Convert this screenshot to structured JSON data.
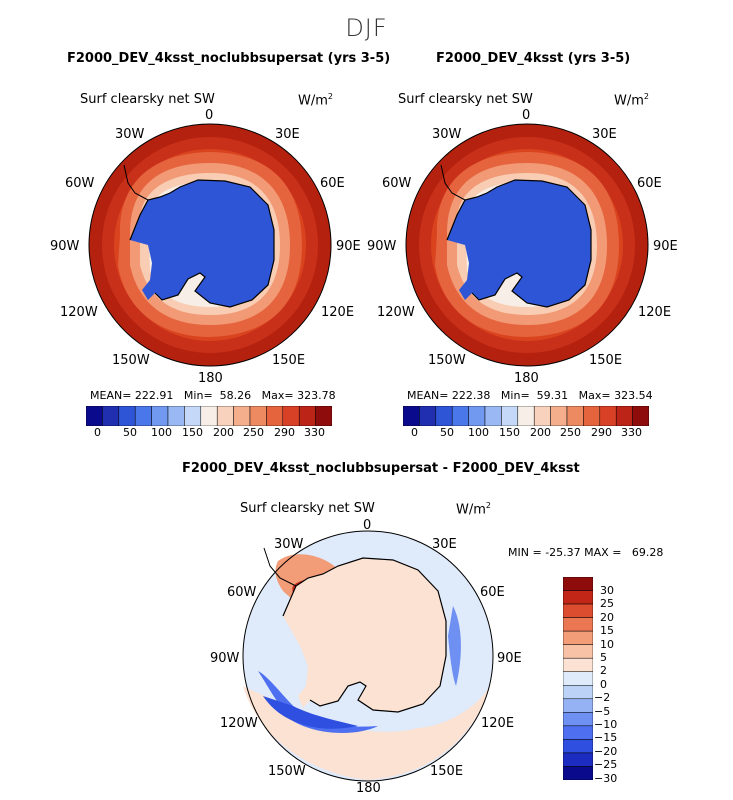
{
  "suptitle": "DJF",
  "panels": [
    {
      "title": "F2000_DEV_4ksst_noclubbsupersat (yrs 3-5)",
      "variable": "Surf clearsky net SW",
      "units": "W/m",
      "units_exp": "2",
      "stats": {
        "mean_label": "MEAN=",
        "mean": "222.91",
        "min_label": "Min=",
        "min": "58.26",
        "max_label": "Max=",
        "max": "323.78"
      },
      "colorbar_ticks": [
        "0",
        "50",
        "100",
        "150",
        "200",
        "250",
        "290",
        "330"
      ]
    },
    {
      "title": "F2000_DEV_4ksst (yrs 3-5)",
      "variable": "Surf clearsky net SW",
      "units": "W/m",
      "units_exp": "2",
      "stats": {
        "mean_label": "MEAN=",
        "mean": "222.38",
        "min_label": "Min=",
        "min": "59.31",
        "max_label": "Max=",
        "max": "323.54"
      },
      "colorbar_ticks": [
        "0",
        "50",
        "100",
        "150",
        "200",
        "250",
        "290",
        "330"
      ]
    }
  ],
  "diff": {
    "title": "F2000_DEV_4ksst_noclubbsupersat - F2000_DEV_4ksst",
    "variable": "Surf clearsky net SW",
    "units": "W/m",
    "units_exp": "2",
    "min_label": "MIN =",
    "min": "-25.37",
    "max_label": "MAX =",
    "max": "69.28",
    "colorbar_ticks": [
      "30",
      "25",
      "20",
      "15",
      "10",
      "5",
      "2",
      "0",
      "−2",
      "−5",
      "−10",
      "−15",
      "−20",
      "−25",
      "−30"
    ]
  },
  "lon_labels": [
    "0",
    "30E",
    "60E",
    "90E",
    "120E",
    "150E",
    "180",
    "150W",
    "120W",
    "90W",
    "60W",
    "30W"
  ],
  "chart_data": [
    {
      "type": "heatmap",
      "projection": "south-polar-stereographic",
      "title": "F2000_DEV_4ksst_noclubbsupersat (yrs 3-5)",
      "variable": "Surf clearsky net SW",
      "units": "W/m2",
      "mean": 222.91,
      "min": 58.26,
      "max": 323.78,
      "levels": [
        0,
        25,
        50,
        75,
        100,
        125,
        150,
        175,
        200,
        225,
        250,
        270,
        290,
        310,
        330
      ]
    },
    {
      "type": "heatmap",
      "projection": "south-polar-stereographic",
      "title": "F2000_DEV_4ksst (yrs 3-5)",
      "variable": "Surf clearsky net SW",
      "units": "W/m2",
      "mean": 222.38,
      "min": 59.31,
      "max": 323.54,
      "levels": [
        0,
        25,
        50,
        75,
        100,
        125,
        150,
        175,
        200,
        225,
        250,
        270,
        290,
        310,
        330
      ]
    },
    {
      "type": "heatmap",
      "projection": "south-polar-stereographic",
      "title": "F2000_DEV_4ksst_noclubbsupersat - F2000_DEV_4ksst",
      "variable": "Surf clearsky net SW",
      "units": "W/m2",
      "min": -25.37,
      "max": 69.28,
      "levels": [
        -30,
        -25,
        -20,
        -15,
        -10,
        -5,
        -2,
        0,
        2,
        5,
        10,
        15,
        20,
        25,
        30
      ]
    }
  ],
  "colors": {
    "abs_scale": [
      "#0a0a8c",
      "#1f2fb0",
      "#2e55d6",
      "#4a78ea",
      "#7099ef",
      "#9ab8f3",
      "#c6d8f7",
      "#f7efe7",
      "#f8d2bd",
      "#f4ae8c",
      "#ee8a62",
      "#e5643d",
      "#d94127",
      "#bd2418",
      "#8f0c0c"
    ],
    "diff_scale": [
      "#0a0a8c",
      "#1c2cc0",
      "#2f4fe0",
      "#4d6ff0",
      "#6e90f2",
      "#94b2f4",
      "#bcd2f6",
      "#dfeafb",
      "#fbe2d2",
      "#f7c2a6",
      "#f29c78",
      "#ea7752",
      "#dc4d30",
      "#c12617",
      "#8f0c0c"
    ]
  }
}
